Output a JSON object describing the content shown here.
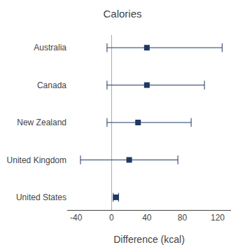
{
  "chart_data": {
    "type": "forest",
    "title": "Calories",
    "xlabel": "Difference (kcal)",
    "categories": [
      "Australia",
      "Canada",
      "New Zealand",
      "United Kingdom",
      "United States"
    ],
    "values": [
      40,
      40,
      30,
      20,
      5
    ],
    "ci_low": [
      -5,
      -5,
      -5,
      -35,
      2
    ],
    "ci_high": [
      125,
      105,
      90,
      75,
      8
    ],
    "color": "#1F3864",
    "xlim": [
      -50,
      135
    ],
    "xticks": [
      -40,
      0,
      40,
      80,
      120
    ],
    "grid": false
  }
}
